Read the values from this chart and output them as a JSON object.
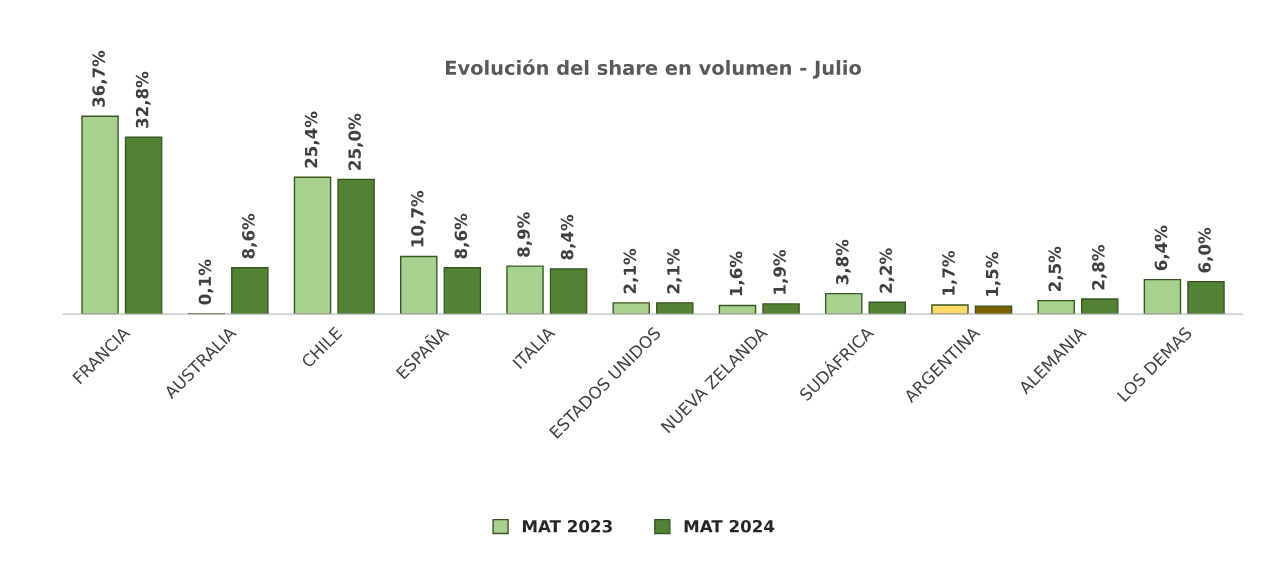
{
  "chart_data": {
    "type": "bar",
    "title": "Evolución del share en volumen - Julio",
    "categories": [
      "FRANCIA",
      "AUSTRALIA",
      "CHILE",
      "ESPAÑA",
      "ITALIA",
      "ESTADOS UNIDOS",
      "NUEVA ZELANDA",
      "SUDÁFRICA",
      "ARGENTINA",
      "ALEMANIA",
      "LOS DEMAS"
    ],
    "series": [
      {
        "name": "MAT 2023",
        "color": "#a9d18e",
        "colors": [
          "#a9d18e",
          "#a9d18e",
          "#a9d18e",
          "#a9d18e",
          "#a9d18e",
          "#a9d18e",
          "#a9d18e",
          "#a9d18e",
          "#ffd966",
          "#a9d18e",
          "#a9d18e"
        ],
        "values": [
          36.7,
          0.1,
          25.4,
          10.7,
          8.9,
          2.1,
          1.6,
          3.8,
          1.7,
          2.5,
          6.4
        ],
        "value_labels": [
          "36,7%",
          "0,1%",
          "25,4%",
          "10,7%",
          "8,9%",
          "2,1%",
          "1,6%",
          "3,8%",
          "1,7%",
          "2,5%",
          "6,4%"
        ]
      },
      {
        "name": "MAT 2024",
        "color": "#548235",
        "colors": [
          "#548235",
          "#548235",
          "#548235",
          "#548235",
          "#548235",
          "#548235",
          "#548235",
          "#548235",
          "#7f6000",
          "#548235",
          "#548235"
        ],
        "values": [
          32.8,
          8.6,
          25.0,
          8.6,
          8.4,
          2.1,
          1.9,
          2.2,
          1.5,
          2.8,
          6.0
        ],
        "value_labels": [
          "32,8%",
          "8,6%",
          "25,0%",
          "8,6%",
          "8,4%",
          "2,1%",
          "1,9%",
          "2,2%",
          "1,5%",
          "2,8%",
          "6,0%"
        ]
      }
    ],
    "legend": "bottom",
    "grid": false
  }
}
